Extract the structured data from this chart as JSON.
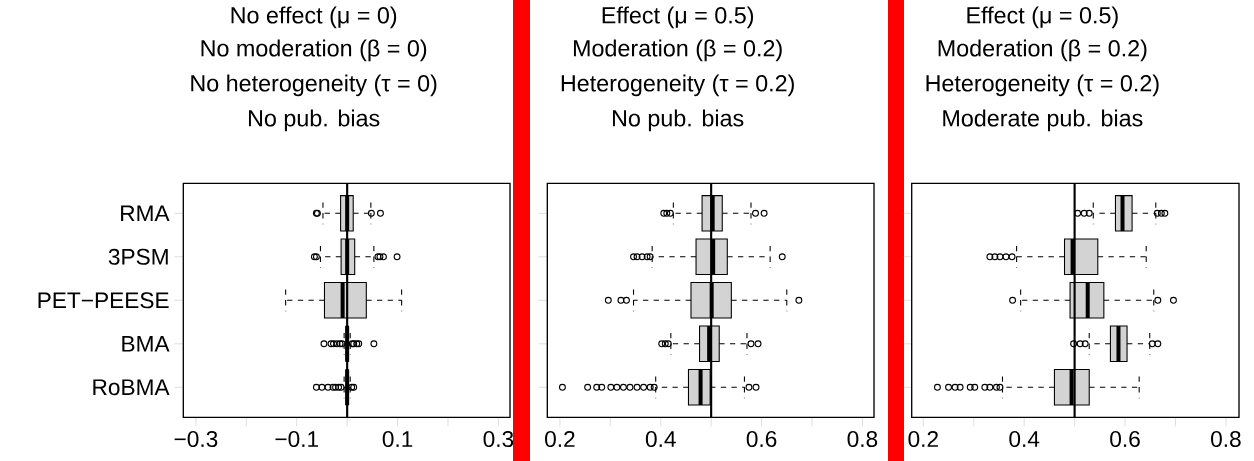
{
  "chart_data": [
    {
      "type": "box",
      "orientation": "horizontal",
      "title": "No effect (μ = 0)",
      "subtitle": "No moderation (β = 0)",
      "annotations": [
        "No heterogeneity (τ = 0)",
        "No pub. bias"
      ],
      "categories": [
        "RMA",
        "3PSM",
        "PET−PEESE",
        "BMA",
        "RoBMA"
      ],
      "series": [
        {
          "color": "#d3d3d3",
          "boxes": [
            {
              "low": -0.048,
              "q1": -0.013,
              "median": 0.0,
              "q3": 0.012,
              "high": 0.047,
              "outliers": [
                -0.061,
                -0.059,
                0.048,
                0.066
              ]
            },
            {
              "low": -0.053,
              "q1": -0.012,
              "median": 0.0,
              "q3": 0.015,
              "high": 0.053,
              "outliers": [
                -0.065,
                -0.061,
                0.061,
                0.065,
                0.072,
                0.099
              ]
            },
            {
              "low": -0.122,
              "q1": -0.045,
              "median": -0.009,
              "q3": 0.038,
              "high": 0.108
            },
            {
              "low": -0.006,
              "q1": -0.002,
              "median": 0.0,
              "q3": 0.002,
              "high": 0.006,
              "outliers": [
                -0.046,
                -0.032,
                -0.027,
                -0.02,
                -0.014,
                -0.01,
                0.01,
                0.013,
                0.019,
                0.023,
                0.053
              ]
            },
            {
              "low": -0.006,
              "q1": -0.002,
              "median": 0.0,
              "q3": 0.002,
              "high": 0.006,
              "outliers": [
                -0.061,
                -0.05,
                -0.038,
                -0.028,
                -0.023,
                -0.017,
                -0.012,
                0.009,
                0.013
              ]
            }
          ]
        }
      ],
      "xlim": [
        -0.325,
        0.323
      ],
      "xticks": [
        {
          "value": -0.3,
          "label": "−0.3"
        },
        {
          "value": -0.2,
          "label": null
        },
        {
          "value": -0.1,
          "label": "−0.1"
        },
        {
          "value": 0,
          "label": null
        },
        {
          "value": 0.1,
          "label": "0.1"
        },
        {
          "value": 0.2,
          "label": null
        },
        {
          "value": 0.3,
          "label": "0.3"
        }
      ],
      "ref_lines": [
        {
          "axis": "x",
          "value": 0
        }
      ]
    },
    {
      "type": "box",
      "orientation": "horizontal",
      "title": "Effect (μ = 0.5)",
      "subtitle": "Moderation (β = 0.2)",
      "annotations": [
        "Heterogeneity (τ = 0.2)",
        "No pub. bias"
      ],
      "categories": [
        null,
        null,
        null,
        null,
        null
      ],
      "series": [
        {
          "color": "#d3d3d3",
          "boxes": [
            {
              "low": 0.425,
              "q1": 0.482,
              "median": 0.503,
              "q3": 0.522,
              "high": 0.579,
              "outliers": [
                0.406,
                0.412,
                0.419,
                0.588,
                0.605
              ]
            },
            {
              "low": 0.383,
              "q1": 0.47,
              "median": 0.504,
              "q3": 0.532,
              "high": 0.617,
              "outliers": [
                0.346,
                0.353,
                0.363,
                0.373,
                0.379,
                0.641
              ]
            },
            {
              "low": 0.346,
              "q1": 0.46,
              "median": 0.501,
              "q3": 0.54,
              "high": 0.65,
              "outliers": [
                0.296,
                0.321,
                0.332,
                0.674
              ]
            },
            {
              "low": 0.42,
              "q1": 0.477,
              "median": 0.496,
              "q3": 0.516,
              "high": 0.571,
              "outliers": [
                0.402,
                0.409,
                0.415,
                0.579,
                0.593
              ]
            },
            {
              "low": 0.39,
              "q1": 0.455,
              "median": 0.479,
              "q3": 0.498,
              "high": 0.566,
              "outliers": [
                0.205,
                0.255,
                0.273,
                0.283,
                0.301,
                0.313,
                0.326,
                0.339,
                0.353,
                0.366,
                0.379,
                0.387,
                0.575,
                0.589
              ]
            }
          ]
        }
      ],
      "xlim": [
        0.175,
        0.823
      ],
      "xticks": [
        0.2,
        {
          "value": 0.3,
          "label": null
        },
        0.4,
        {
          "value": 0.5,
          "label": null
        },
        0.6,
        {
          "value": 0.7,
          "label": null
        },
        0.8
      ],
      "ref_lines": [
        {
          "axis": "x",
          "value": 0.5
        }
      ]
    },
    {
      "type": "box",
      "orientation": "horizontal",
      "title": "Effect (μ = 0.5)",
      "subtitle": "Moderation (β = 0.2)",
      "annotations": [
        "Heterogeneity (τ = 0.2)",
        "Moderate pub. bias"
      ],
      "categories": [
        null,
        null,
        null,
        null,
        null
      ],
      "series": [
        {
          "color": "#d3d3d3",
          "boxes": [
            {
              "low": 0.537,
              "q1": 0.581,
              "median": 0.595,
              "q3": 0.614,
              "high": 0.661,
              "outliers": [
                0.506,
                0.519,
                0.529,
                0.664,
                0.672,
                0.679
              ]
            },
            {
              "low": 0.385,
              "q1": 0.48,
              "median": 0.496,
              "q3": 0.546,
              "high": 0.642,
              "outliers": [
                0.332,
                0.342,
                0.352,
                0.364,
                0.376
              ]
            },
            {
              "low": 0.393,
              "q1": 0.491,
              "median": 0.526,
              "q3": 0.558,
              "high": 0.657,
              "outliers": [
                0.377,
                0.665,
                0.696
              ]
            },
            {
              "low": 0.529,
              "q1": 0.571,
              "median": 0.587,
              "q3": 0.604,
              "high": 0.649,
              "outliers": [
                0.498,
                0.511,
                0.521,
                0.654,
                0.665
              ]
            },
            {
              "low": 0.357,
              "q1": 0.46,
              "median": 0.494,
              "q3": 0.529,
              "high": 0.628,
              "outliers": [
                0.228,
                0.25,
                0.263,
                0.273,
                0.293,
                0.302,
                0.322,
                0.332,
                0.345,
                0.352
              ]
            }
          ]
        }
      ],
      "xlim": [
        0.177,
        0.826
      ],
      "xticks": [
        0.2,
        {
          "value": 0.3,
          "label": null
        },
        0.4,
        {
          "value": 0.5,
          "label": null
        },
        0.6,
        {
          "value": 0.7,
          "label": null
        },
        0.8
      ],
      "ref_lines": [
        {
          "axis": "x",
          "value": 0.5
        }
      ]
    }
  ]
}
